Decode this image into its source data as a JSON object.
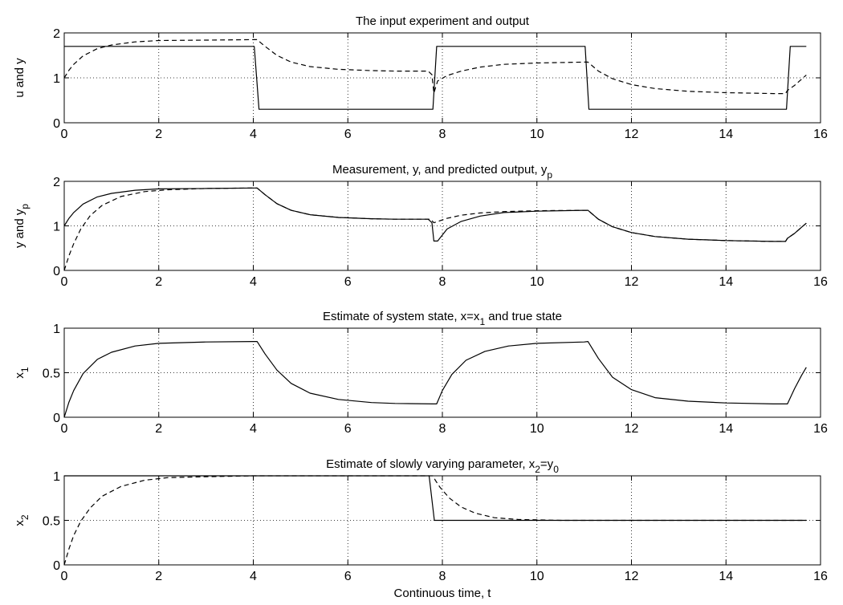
{
  "chart_data": [
    {
      "type": "line",
      "title": "The input experiment and output",
      "ylabel": "u and y",
      "xlim": [
        0,
        16
      ],
      "ylim": [
        0,
        2
      ],
      "xticks": [
        "0",
        "2",
        "4",
        "6",
        "8",
        "10",
        "12",
        "14",
        "16"
      ],
      "yticks": [
        "0",
        "1",
        "2"
      ],
      "grid": true,
      "series": [
        {
          "style": "solid",
          "x": [
            0,
            4.02,
            4.12,
            7.8,
            7.88,
            11.02,
            11.1,
            15.28,
            15.36,
            15.7
          ],
          "y": [
            1.7,
            1.7,
            0.3,
            0.3,
            1.7,
            1.7,
            0.3,
            0.3,
            1.7,
            1.7
          ]
        },
        {
          "style": "dashed",
          "x": [
            0,
            0.1,
            0.2,
            0.4,
            0.7,
            1.0,
            1.5,
            2.0,
            3.0,
            4.0,
            4.08,
            4.25,
            4.5,
            4.8,
            5.2,
            5.8,
            6.5,
            7.0,
            7.7,
            7.78,
            7.82,
            7.9,
            8.1,
            8.4,
            8.8,
            9.3,
            10.0,
            11.0,
            11.08,
            11.3,
            11.6,
            12.0,
            12.5,
            13.2,
            14.0,
            15.0,
            15.26,
            15.3,
            15.45,
            15.6,
            15.7
          ],
          "y": [
            1.0,
            1.17,
            1.3,
            1.49,
            1.65,
            1.73,
            1.8,
            1.83,
            1.84,
            1.85,
            1.85,
            1.7,
            1.5,
            1.35,
            1.25,
            1.19,
            1.16,
            1.15,
            1.15,
            1.07,
            0.66,
            0.93,
            1.05,
            1.15,
            1.24,
            1.3,
            1.33,
            1.35,
            1.35,
            1.15,
            0.98,
            0.85,
            0.76,
            0.7,
            0.67,
            0.65,
            0.65,
            0.72,
            0.83,
            0.97,
            1.06
          ]
        }
      ]
    },
    {
      "type": "line",
      "title": "Measurement, y, and predicted output, y",
      "title_sub": "p",
      "ylabel": "y and y",
      "ylabel_sub": "p",
      "xlim": [
        0,
        16
      ],
      "ylim": [
        0,
        2
      ],
      "xticks": [
        "0",
        "2",
        "4",
        "6",
        "8",
        "10",
        "12",
        "14",
        "16"
      ],
      "yticks": [
        "0",
        "1",
        "2"
      ],
      "grid": true,
      "series": [
        {
          "style": "solid",
          "x": [
            0,
            0.1,
            0.2,
            0.4,
            0.7,
            1.0,
            1.5,
            2.0,
            3.0,
            4.0,
            4.08,
            4.25,
            4.5,
            4.8,
            5.2,
            5.8,
            6.5,
            7.0,
            7.7,
            7.78,
            7.82,
            7.9,
            8.1,
            8.4,
            8.8,
            9.3,
            10.0,
            11.0,
            11.08,
            11.3,
            11.6,
            12.0,
            12.5,
            13.2,
            14.0,
            15.0,
            15.26,
            15.3,
            15.45,
            15.6,
            15.7
          ],
          "y": [
            1.0,
            1.17,
            1.3,
            1.49,
            1.65,
            1.73,
            1.8,
            1.83,
            1.84,
            1.85,
            1.85,
            1.7,
            1.5,
            1.35,
            1.25,
            1.19,
            1.16,
            1.15,
            1.15,
            1.07,
            0.66,
            0.66,
            0.93,
            1.1,
            1.22,
            1.3,
            1.33,
            1.35,
            1.35,
            1.15,
            0.98,
            0.85,
            0.76,
            0.7,
            0.67,
            0.65,
            0.65,
            0.72,
            0.83,
            0.97,
            1.06
          ]
        },
        {
          "style": "dashed",
          "x": [
            0,
            0.1,
            0.2,
            0.35,
            0.55,
            0.8,
            1.2,
            1.7,
            2.2,
            3.0,
            4.0,
            4.08,
            4.25,
            4.5,
            4.8,
            5.2,
            5.8,
            6.5,
            7.0,
            7.75,
            7.82,
            8.1,
            8.4,
            8.8,
            9.3,
            10.0,
            11.0,
            11.08,
            11.3,
            11.6,
            12.0,
            12.5,
            13.2,
            14.0,
            15.0,
            15.26,
            15.3,
            15.45,
            15.6,
            15.7
          ],
          "y": [
            0.0,
            0.33,
            0.6,
            0.93,
            1.23,
            1.46,
            1.66,
            1.77,
            1.81,
            1.84,
            1.85,
            1.85,
            1.7,
            1.5,
            1.35,
            1.25,
            1.19,
            1.16,
            1.15,
            1.15,
            1.07,
            1.17,
            1.24,
            1.29,
            1.32,
            1.34,
            1.35,
            1.35,
            1.15,
            0.98,
            0.85,
            0.76,
            0.7,
            0.67,
            0.65,
            0.65,
            0.72,
            0.83,
            0.97,
            1.06
          ]
        }
      ]
    },
    {
      "type": "line",
      "title": "Estimate of system state, x=x",
      "title_sub": "1",
      "title_after": " and true state",
      "ylabel": "x",
      "ylabel_sub": "1",
      "xlim": [
        0,
        16
      ],
      "ylim": [
        0,
        1
      ],
      "xticks": [
        "0",
        "2",
        "4",
        "6",
        "8",
        "10",
        "12",
        "14",
        "16"
      ],
      "yticks": [
        "0",
        "0.5",
        "1"
      ],
      "grid": true,
      "series": [
        {
          "style": "solid",
          "x": [
            0,
            0.1,
            0.2,
            0.4,
            0.7,
            1.0,
            1.5,
            2.0,
            3.0,
            4.0,
            4.08,
            4.25,
            4.5,
            4.8,
            5.2,
            5.8,
            6.5,
            7.0,
            7.8,
            7.88,
            8.0,
            8.2,
            8.5,
            8.9,
            9.4,
            10.0,
            11.0,
            11.08,
            11.3,
            11.6,
            12.0,
            12.5,
            13.2,
            14.0,
            15.0,
            15.3,
            15.45,
            15.6,
            15.7
          ],
          "y": [
            0.0,
            0.17,
            0.3,
            0.49,
            0.65,
            0.73,
            0.8,
            0.83,
            0.845,
            0.85,
            0.85,
            0.71,
            0.53,
            0.38,
            0.27,
            0.2,
            0.165,
            0.155,
            0.15,
            0.15,
            0.3,
            0.48,
            0.64,
            0.74,
            0.8,
            0.83,
            0.845,
            0.85,
            0.66,
            0.45,
            0.31,
            0.22,
            0.18,
            0.16,
            0.15,
            0.15,
            0.32,
            0.47,
            0.56
          ]
        }
      ]
    },
    {
      "type": "line",
      "title": "Estimate of slowly varying parameter, x",
      "title_sub": "2",
      "title_after": "=y",
      "title_sub2": "0",
      "ylabel": "x",
      "ylabel_sub": "2",
      "xlabel": "Continuous time, t",
      "xlim": [
        0,
        16
      ],
      "ylim": [
        0,
        1
      ],
      "xticks": [
        "0",
        "2",
        "4",
        "6",
        "8",
        "10",
        "12",
        "14",
        "16"
      ],
      "yticks": [
        "0",
        "0.5",
        "1"
      ],
      "grid": true,
      "series": [
        {
          "style": "solid",
          "x": [
            0,
            7.72,
            7.83,
            15.7
          ],
          "y": [
            1.0,
            1.0,
            0.5,
            0.5
          ]
        },
        {
          "style": "dashed",
          "x": [
            0,
            0.1,
            0.2,
            0.35,
            0.55,
            0.8,
            1.2,
            1.7,
            2.2,
            3.0,
            4.0,
            7.8,
            7.85,
            7.95,
            8.15,
            8.4,
            8.7,
            9.1,
            9.6,
            10.5,
            11.5,
            15.7
          ],
          "y": [
            0.0,
            0.18,
            0.33,
            0.49,
            0.64,
            0.77,
            0.88,
            0.95,
            0.98,
            0.99,
            1.0,
            1.0,
            0.95,
            0.87,
            0.75,
            0.65,
            0.58,
            0.53,
            0.51,
            0.5,
            0.5,
            0.5
          ]
        }
      ]
    }
  ]
}
